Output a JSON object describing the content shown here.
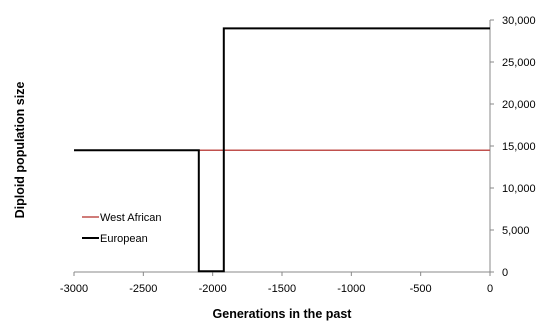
{
  "chart_data": {
    "type": "line",
    "title": "",
    "xlabel": "Generations in the past",
    "ylabel": "Diploid population size",
    "xlim": [
      -3000,
      0
    ],
    "ylim": [
      0,
      30000
    ],
    "x_ticks": [
      -3000,
      -2500,
      -2000,
      -1500,
      -1000,
      -500,
      0
    ],
    "x_tick_labels": [
      "-3000",
      "-2500",
      "-2000",
      "-1500",
      "-1000",
      "-500",
      "0"
    ],
    "y_ticks": [
      0,
      5000,
      10000,
      15000,
      20000,
      25000,
      30000
    ],
    "y_tick_labels": [
      "0",
      "5,000",
      "10,000",
      "15,000",
      "20,000",
      "25,000",
      "30,000"
    ],
    "y_axis_side": "right",
    "grid": false,
    "legend_position": "left",
    "series": [
      {
        "name": "West African",
        "color": "#c0504d",
        "points": [
          [
            -3000,
            14500
          ],
          [
            0,
            14500
          ]
        ]
      },
      {
        "name": "European",
        "color": "#000000",
        "points": [
          [
            -3000,
            14500
          ],
          [
            -2100,
            14500
          ],
          [
            -2100,
            100
          ],
          [
            -1920,
            100
          ],
          [
            -1920,
            29000
          ],
          [
            0,
            29000
          ]
        ]
      }
    ]
  }
}
